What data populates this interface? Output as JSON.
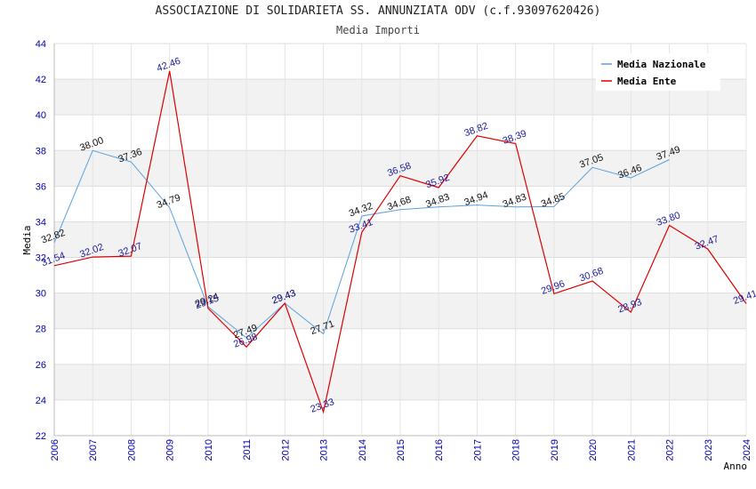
{
  "header": {
    "title": "ASSOCIAZIONE DI SOLIDARIETA SS. ANNUNZIATA ODV (c.f.93097620426)",
    "subtitle": "Media Importi"
  },
  "chart_data": {
    "type": "line",
    "title": "ASSOCIAZIONE DI SOLIDARIETA SS. ANNUNZIATA ODV (c.f.93097620426)",
    "subtitle": "Media Importi",
    "xlabel": "Anno",
    "ylabel": "Media",
    "ylim": [
      22,
      44
    ],
    "yticks": [
      22,
      24,
      26,
      28,
      30,
      32,
      34,
      36,
      38,
      40,
      42,
      44
    ],
    "x": [
      "2006",
      "2007",
      "2008",
      "2009",
      "2010",
      "2011",
      "2012",
      "2013",
      "2014",
      "2015",
      "2016",
      "2017",
      "2018",
      "2019",
      "2020",
      "2021",
      "2022",
      "2023",
      "2024"
    ],
    "grid": true,
    "legend_position": "top-right",
    "series": [
      {
        "name": "Media Nazionale",
        "color": "#5aa0e0",
        "values": [
          32.82,
          38.0,
          37.36,
          34.79,
          29.24,
          27.49,
          29.43,
          27.71,
          34.32,
          34.68,
          34.83,
          34.94,
          34.83,
          34.85,
          37.05,
          36.46,
          37.49,
          null,
          null
        ],
        "labels": [
          "32.82",
          "38.00",
          "37.36",
          "34.79",
          "29.24",
          "27.49",
          "29.43",
          "27.71",
          "34.32",
          "34.68",
          "34.83",
          "34.94",
          "34.83",
          "34.85",
          "37.05",
          "36.46",
          "37.49",
          "",
          ""
        ]
      },
      {
        "name": "Media Ente",
        "color": "#dd0000",
        "values": [
          31.54,
          32.02,
          32.07,
          42.46,
          29.15,
          26.98,
          29.43,
          23.33,
          33.41,
          36.58,
          35.92,
          38.82,
          38.39,
          29.96,
          30.68,
          28.93,
          33.8,
          32.47,
          29.41
        ],
        "labels": [
          "31.54",
          "32.02",
          "32.07",
          "42.46",
          "29.15",
          "26.98",
          "29.43",
          "23.33",
          "33.41",
          "36.58",
          "35.92",
          "38.82",
          "38.39",
          "29.96",
          "30.68",
          "28.93",
          "33.80",
          "32.47",
          "29.41"
        ]
      }
    ]
  }
}
